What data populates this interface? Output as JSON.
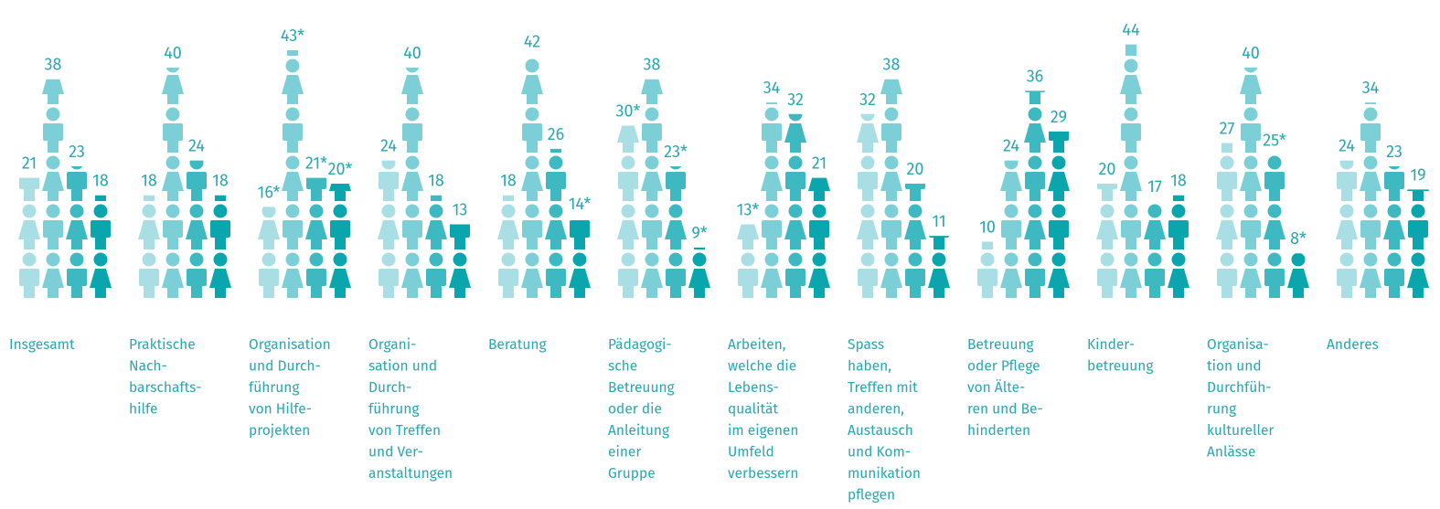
{
  "chart_data": {
    "type": "pictogram",
    "categories": [
      [
        "Insgesamt"
      ],
      [
        "Praktische",
        "Nach-",
        "barschafts-",
        "hilfe"
      ],
      [
        "Organisation",
        "und Durch-",
        "führung",
        "von Hilfe-",
        "projekten"
      ],
      [
        "Organi-",
        "sation und",
        "Durch-",
        "führung",
        "von Treffen",
        "und Ver-",
        "anstaltungen"
      ],
      [
        "Beratung"
      ],
      [
        "Pädagogi-",
        "sche",
        "Betreuung",
        "oder die",
        "Anleitung",
        "einer",
        "Gruppe"
      ],
      [
        "Arbeiten,",
        "welche die",
        "Lebens-",
        "qualität",
        "im eigenen",
        "Umfeld",
        "verbessern"
      ],
      [
        "Spass",
        "haben,",
        "Treffen mit",
        "anderen,",
        "Austausch",
        "und Kom-",
        "munikation",
        "pflegen"
      ],
      [
        "Betreuung",
        "oder Pflege",
        "von Älte-",
        "ren und Be-",
        "hinderten"
      ],
      [
        "Kinder-",
        "betreuung"
      ],
      [
        "Organisa-",
        "tion und",
        "Durchfüh-",
        "rung",
        "kultureller",
        "Anlässe"
      ],
      [
        "Anderes"
      ]
    ],
    "series": [
      {
        "color": "#a9dfe4",
        "values": [
          21,
          18,
          16,
          24,
          18,
          30,
          13,
          32,
          10,
          20,
          27,
          24
        ],
        "value_labels": [
          "21",
          "18",
          "16*",
          "24",
          "18",
          "30*",
          "13*",
          "32",
          "10",
          "20",
          "27",
          "24"
        ]
      },
      {
        "color": "#7dcfd7",
        "values": [
          38,
          40,
          43,
          40,
          42,
          38,
          34,
          38,
          24,
          44,
          40,
          34
        ],
        "value_labels": [
          "38",
          "40",
          "43*",
          "40",
          "42",
          "38",
          "34",
          "38",
          "24",
          "44",
          "40",
          "34"
        ]
      },
      {
        "color": "#3fb9c1",
        "values": [
          23,
          24,
          21,
          18,
          26,
          23,
          32,
          20,
          36,
          17,
          25,
          23
        ],
        "value_labels": [
          "23",
          "24",
          "21*",
          "18",
          "26",
          "23*",
          "32",
          "20",
          "36",
          "17",
          "25*",
          "23"
        ]
      },
      {
        "color": "#0aa5ad",
        "values": [
          18,
          18,
          20,
          13,
          14,
          9,
          21,
          11,
          29,
          18,
          8,
          19
        ],
        "value_labels": [
          "18",
          "18",
          "20*",
          "13",
          "14*",
          "9*",
          "21",
          "11",
          "29",
          "18",
          "8*",
          "19"
        ]
      }
    ]
  }
}
